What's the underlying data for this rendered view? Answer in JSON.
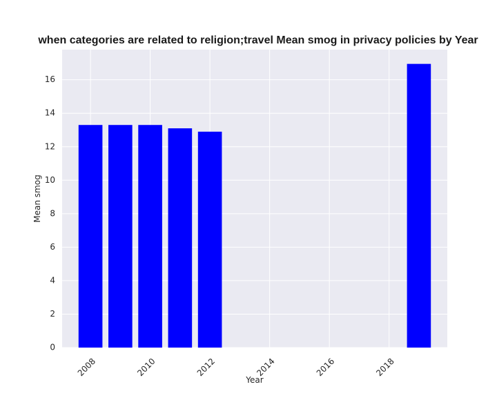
{
  "chart_data": {
    "type": "bar",
    "title": "when categories are related to religion;travel Mean smog in privacy policies by Year",
    "xlabel": "Year",
    "ylabel": "Mean smog",
    "x": [
      2008,
      2009,
      2010,
      2011,
      2012,
      2019
    ],
    "values": [
      13.3,
      13.3,
      13.3,
      13.1,
      12.9,
      16.95
    ],
    "xlim": [
      2007.05,
      2019.95
    ],
    "ylim": [
      0,
      17.8
    ],
    "xticks": [
      2008,
      2010,
      2012,
      2014,
      2016,
      2018
    ],
    "xtick_labels": [
      "2008",
      "2010",
      "2012",
      "2014",
      "2016",
      "2018"
    ],
    "yticks": [
      0,
      2,
      4,
      6,
      8,
      10,
      12,
      14,
      16
    ],
    "ytick_labels": [
      "0",
      "2",
      "4",
      "6",
      "8",
      "10",
      "12",
      "14",
      "16"
    ],
    "bar_color": "#0000ff",
    "plot_background": "#eaeaf2",
    "grid_color": "#ffffff",
    "grid": true,
    "legend": false
  }
}
